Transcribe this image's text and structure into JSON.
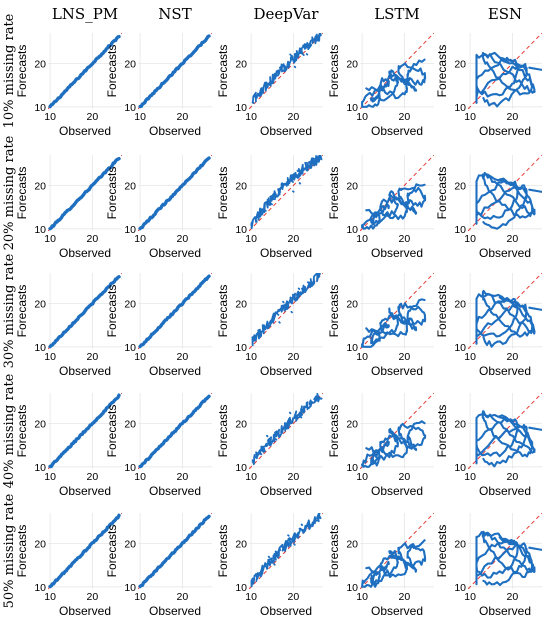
{
  "chart_data": {
    "type": "scatter",
    "columns": [
      "LNS_PM",
      "NST",
      "DeepVar",
      "LSTM",
      "ESN"
    ],
    "rows": [
      "10% missing rate",
      "20% missing rate",
      "30% missing rate",
      "40% missing rate",
      "50% missing rate"
    ],
    "xlabel": "Observed",
    "ylabel": "Forecasts",
    "x_ticks": [
      10,
      20
    ],
    "y_ticks": [
      10,
      20
    ],
    "xlim": [
      9.5,
      27
    ],
    "ylim": [
      9.5,
      27
    ],
    "identity_line": true,
    "grid": true,
    "colors": {
      "series": "#1f6fc1",
      "identity": "#e53935"
    },
    "models": {
      "LNS_PM": {
        "pattern": "tight-diagonal",
        "x": [
          10,
          14,
          18,
          22,
          26
        ],
        "y": [
          10,
          14,
          18,
          22,
          26
        ]
      },
      "NST": {
        "pattern": "tight-diagonal",
        "x": [
          10,
          14,
          18,
          22,
          26
        ],
        "y": [
          10,
          14,
          18,
          22,
          26
        ]
      },
      "DeepVar": {
        "pattern": "noisy-diagonal",
        "x": [
          10,
          14,
          18,
          22,
          26
        ],
        "y": [
          12,
          14.5,
          19,
          23,
          25.5
        ]
      },
      "LSTM": {
        "pattern": "scattered-loops",
        "x": [
          11,
          14,
          17,
          20,
          24
        ],
        "y": [
          12,
          14,
          16,
          17,
          19
        ]
      },
      "ESN": {
        "pattern": "wide-loops",
        "x": [
          12,
          15,
          18,
          21,
          24
        ],
        "y": [
          15,
          16,
          17,
          18,
          17
        ]
      }
    }
  }
}
